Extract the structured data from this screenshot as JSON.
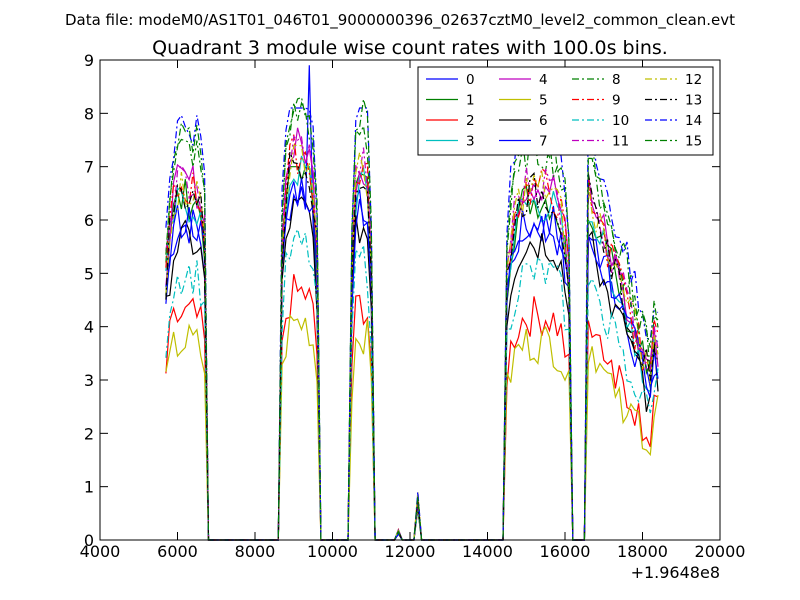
{
  "figure": {
    "suptitle": "Data file: modeM0/AS1T01_046T01_9000000396_02637cztM0_level2_common_clean.evt"
  },
  "chart_data": {
    "type": "line",
    "title": "Quadrant 3 module wise count rates with 100.0s bins.",
    "xlabel": "",
    "ylabel": "",
    "x_offset_label": "+1.9648e8",
    "xlim": [
      4000,
      20000
    ],
    "ylim": [
      0,
      9
    ],
    "xticks": [
      4000,
      6000,
      8000,
      10000,
      12000,
      14000,
      16000,
      18000,
      20000
    ],
    "xtick_labels": [
      "4000",
      "6000",
      "8000",
      "10000",
      "12000",
      "14000",
      "16000",
      "18000",
      "20000"
    ],
    "yticks": [
      0,
      1,
      2,
      3,
      4,
      5,
      6,
      7,
      8,
      9
    ],
    "ytick_labels": [
      "0",
      "1",
      "2",
      "3",
      "4",
      "5",
      "6",
      "7",
      "8",
      "9"
    ],
    "grid": false,
    "legend_position": "top-right",
    "legend_columns": 4,
    "series": [
      {
        "name": "0",
        "color": "#0000ff",
        "dash": "solid",
        "level": 5.9,
        "peak": 8.9
      },
      {
        "name": "1",
        "color": "#008000",
        "dash": "solid",
        "level": 6.4,
        "peak": 7.0
      },
      {
        "name": "2",
        "color": "#ff0000",
        "dash": "solid",
        "level": 4.2,
        "peak": 5.3
      },
      {
        "name": "3",
        "color": "#00bfbf",
        "dash": "solid",
        "level": 6.3,
        "peak": 7.2
      },
      {
        "name": "4",
        "color": "#bf00bf",
        "dash": "solid",
        "level": 6.7,
        "peak": 7.8
      },
      {
        "name": "5",
        "color": "#bfbf00",
        "dash": "solid",
        "level": 3.7,
        "peak": 4.6
      },
      {
        "name": "6",
        "color": "#000000",
        "dash": "solid",
        "level": 5.6,
        "peak": 6.6
      },
      {
        "name": "7",
        "color": "#0000ff",
        "dash": "solid",
        "level": 6.0,
        "peak": 7.0
      },
      {
        "name": "8",
        "color": "#008000",
        "dash": "dashdot",
        "level": 7.3,
        "peak": 8.2
      },
      {
        "name": "9",
        "color": "#ff0000",
        "dash": "dashdot",
        "level": 6.6,
        "peak": 7.6
      },
      {
        "name": "10",
        "color": "#00bfbf",
        "dash": "dashdot",
        "level": 5.0,
        "peak": 6.0
      },
      {
        "name": "11",
        "color": "#bf00bf",
        "dash": "dashdot",
        "level": 6.7,
        "peak": 7.8
      },
      {
        "name": "12",
        "color": "#bfbf00",
        "dash": "dashdot",
        "level": 6.6,
        "peak": 7.4
      },
      {
        "name": "13",
        "color": "#000000",
        "dash": "dashdot",
        "level": 6.5,
        "peak": 7.6
      },
      {
        "name": "14",
        "color": "#0000ff",
        "dash": "dashdot",
        "level": 7.8,
        "peak": 8.1
      },
      {
        "name": "15",
        "color": "#008000",
        "dash": "dashdot",
        "level": 7.5,
        "peak": 8.3
      }
    ],
    "segments": [
      {
        "x_start": 5700,
        "x_end": 6780,
        "level_scale": 1.0
      },
      {
        "x_start": 8700,
        "x_end": 9600,
        "level_scale": 1.1
      },
      {
        "x_start": 10500,
        "x_end": 11000,
        "level_scale": 1.05
      },
      {
        "x_start": 14500,
        "x_end": 16100,
        "level_scale": 1.0
      },
      {
        "x_start": 16600,
        "x_end": 18400,
        "level_scale": 0.95
      }
    ],
    "small_bumps": [
      {
        "x": 11700,
        "y": 0.15
      },
      {
        "x": 11950,
        "y": 0.2
      },
      {
        "x": 12200,
        "y": 0.7
      }
    ]
  }
}
